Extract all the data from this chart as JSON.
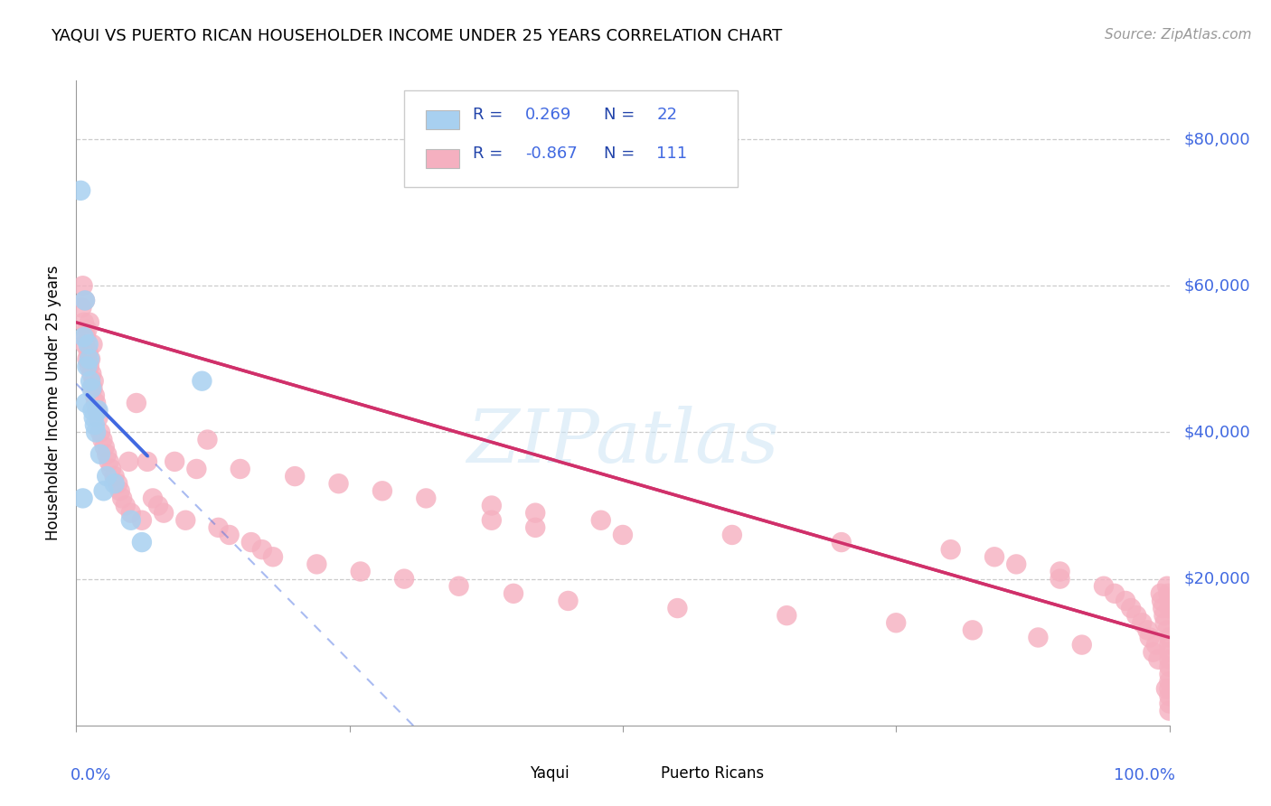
{
  "title": "YAQUI VS PUERTO RICAN HOUSEHOLDER INCOME UNDER 25 YEARS CORRELATION CHART",
  "source": "Source: ZipAtlas.com",
  "ylabel": "Householder Income Under 25 years",
  "legend_r_yaqui": "0.269",
  "legend_n_yaqui": "22",
  "legend_r_puerto": "-0.867",
  "legend_n_puerto": "111",
  "color_yaqui_fill": "#a8d0f0",
  "color_puerto_fill": "#f5b0c0",
  "color_yaqui_line": "#4169E1",
  "color_puerto_line": "#d0306a",
  "color_accent": "#4169E1",
  "color_legend_text": "#3355cc",
  "color_grid": "#cccccc",
  "ylim": [
    0,
    88000
  ],
  "xlim": [
    0.0,
    1.0
  ],
  "y_tick_vals": [
    0,
    20000,
    40000,
    60000,
    80000
  ],
  "yaqui_x": [
    0.004,
    0.006,
    0.007,
    0.008,
    0.009,
    0.01,
    0.011,
    0.012,
    0.013,
    0.014,
    0.015,
    0.016,
    0.017,
    0.018,
    0.02,
    0.022,
    0.025,
    0.028,
    0.035,
    0.05,
    0.06,
    0.115
  ],
  "yaqui_y": [
    73000,
    31000,
    53000,
    58000,
    44000,
    49000,
    52000,
    50000,
    47000,
    46000,
    43000,
    42000,
    41000,
    40000,
    43000,
    37000,
    32000,
    34000,
    33000,
    28000,
    25000,
    47000
  ],
  "pr_x": [
    0.005,
    0.006,
    0.007,
    0.008,
    0.008,
    0.009,
    0.01,
    0.01,
    0.011,
    0.012,
    0.012,
    0.013,
    0.014,
    0.015,
    0.015,
    0.016,
    0.017,
    0.018,
    0.019,
    0.02,
    0.022,
    0.024,
    0.026,
    0.028,
    0.03,
    0.032,
    0.035,
    0.038,
    0.04,
    0.042,
    0.045,
    0.048,
    0.05,
    0.055,
    0.06,
    0.065,
    0.07,
    0.075,
    0.08,
    0.09,
    0.1,
    0.11,
    0.12,
    0.13,
    0.14,
    0.15,
    0.16,
    0.17,
    0.18,
    0.2,
    0.22,
    0.24,
    0.26,
    0.28,
    0.3,
    0.32,
    0.35,
    0.38,
    0.4,
    0.42,
    0.45,
    0.48,
    0.5,
    0.38,
    0.42,
    0.55,
    0.6,
    0.65,
    0.7,
    0.75,
    0.8,
    0.82,
    0.84,
    0.86,
    0.88,
    0.9,
    0.9,
    0.92,
    0.94,
    0.95,
    0.96,
    0.965,
    0.97,
    0.975,
    0.98,
    0.982,
    0.985,
    0.988,
    0.99,
    0.992,
    0.993,
    0.994,
    0.995,
    0.996,
    0.997,
    0.998,
    0.998,
    0.999,
    1.0,
    1.0,
    1.0,
    1.0,
    1.0,
    1.0,
    1.0,
    1.0,
    1.0,
    1.0,
    1.0,
    1.0,
    1.0
  ],
  "pr_y": [
    57000,
    60000,
    55000,
    52000,
    58000,
    53000,
    50000,
    54000,
    51000,
    49000,
    55000,
    50000,
    48000,
    46000,
    52000,
    47000,
    45000,
    44000,
    43000,
    42000,
    40000,
    39000,
    38000,
    37000,
    36000,
    35000,
    34000,
    33000,
    32000,
    31000,
    30000,
    36000,
    29000,
    44000,
    28000,
    36000,
    31000,
    30000,
    29000,
    36000,
    28000,
    35000,
    39000,
    27000,
    26000,
    35000,
    25000,
    24000,
    23000,
    34000,
    22000,
    33000,
    21000,
    32000,
    20000,
    31000,
    19000,
    30000,
    18000,
    29000,
    17000,
    28000,
    26000,
    28000,
    27000,
    16000,
    26000,
    15000,
    25000,
    14000,
    24000,
    13000,
    23000,
    22000,
    12000,
    21000,
    20000,
    11000,
    19000,
    18000,
    17000,
    16000,
    15000,
    14000,
    13000,
    12000,
    10000,
    11000,
    9000,
    18000,
    17000,
    16000,
    15000,
    14000,
    5000,
    19000,
    13000,
    18000,
    12000,
    17000,
    16000,
    11000,
    10000,
    9000,
    8000,
    7000,
    6000,
    5000,
    4000,
    3000,
    2000
  ]
}
